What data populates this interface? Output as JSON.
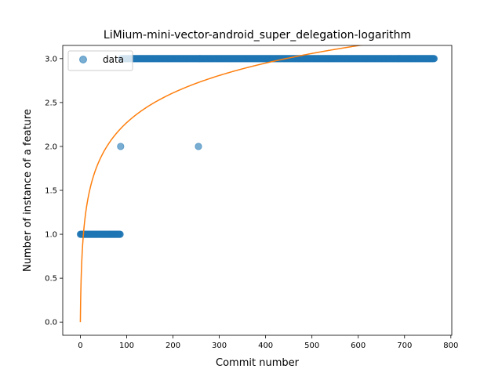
{
  "chart_data": {
    "type": "scatter",
    "title": "LiMium-mini-vector-android_super_delegation-logarithm",
    "xlabel": "Commit number",
    "ylabel": "Number of instance of a feature",
    "xlim": [
      -38,
      802
    ],
    "ylim": [
      -0.15,
      3.15
    ],
    "xticks": [
      0,
      100,
      200,
      300,
      400,
      500,
      600,
      700,
      800
    ],
    "yticks": [
      0.0,
      0.5,
      1.0,
      1.5,
      2.0,
      2.5,
      3.0
    ],
    "ytick_labels": [
      "0.0",
      "0.5",
      "1.0",
      "1.5",
      "2.0",
      "2.5",
      "3.0"
    ],
    "grid": false,
    "legend": {
      "position": "top-left",
      "entries": [
        "data"
      ]
    },
    "series": [
      {
        "name": "data",
        "kind": "scatter",
        "color": "#1f77b4",
        "alpha": 0.6,
        "ranges": [
          {
            "x_start": 0,
            "x_end": 86,
            "y": 1
          },
          {
            "x_start": 88,
            "x_end": 764,
            "y": 3
          }
        ],
        "points": [
          {
            "x": 87,
            "y": 2
          },
          {
            "x": 255,
            "y": 2
          }
        ]
      },
      {
        "kind": "line",
        "color": "#ff7f0e",
        "fit": {
          "form": "a*ln(x+1)",
          "a": 0.492
        },
        "x_range": [
          0,
          764
        ]
      }
    ]
  }
}
